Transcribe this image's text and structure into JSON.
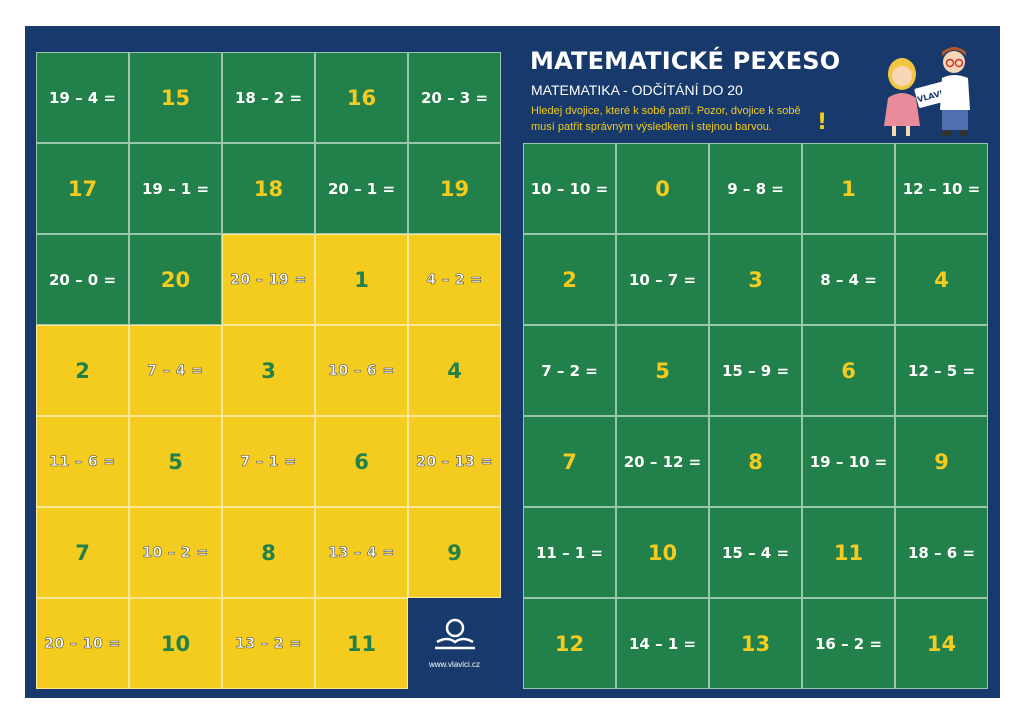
{
  "header": {
    "title": "MATEMATICKÉ PEXESO",
    "subtitle": "MATEMATIKA - ODČÍTÁNÍ DO 20",
    "instructions": "Hledej dvojice, které k sobě patří. Pozor, dvojice k sobě musí patřit správným výsledkem i stejnou barvou.",
    "exclaim": "!"
  },
  "illustration": {
    "name": "kids-illustration",
    "sign_text": "VLAVICI"
  },
  "logo": {
    "url_text": "www.vlavici.cz",
    "icon": "book-reader-icon"
  },
  "colors": {
    "background": "#17396b",
    "green": "#22804a",
    "yellow": "#f4cb1f",
    "white": "#ffffff"
  },
  "left_grid": [
    [
      {
        "t": "19 – 4 =",
        "c": "green",
        "k": "expr"
      },
      {
        "t": "15",
        "c": "green",
        "k": "num"
      },
      {
        "t": "18 – 2 =",
        "c": "green",
        "k": "expr"
      },
      {
        "t": "16",
        "c": "green",
        "k": "num"
      },
      {
        "t": "20 – 3 =",
        "c": "green",
        "k": "expr"
      }
    ],
    [
      {
        "t": "17",
        "c": "green",
        "k": "num"
      },
      {
        "t": "19 – 1 =",
        "c": "green",
        "k": "expr"
      },
      {
        "t": "18",
        "c": "green",
        "k": "num"
      },
      {
        "t": "20 – 1 =",
        "c": "green",
        "k": "expr"
      },
      {
        "t": "19",
        "c": "green",
        "k": "num"
      }
    ],
    [
      {
        "t": "20 – 0 =",
        "c": "green",
        "k": "expr"
      },
      {
        "t": "20",
        "c": "green",
        "k": "num"
      },
      {
        "t": "20 – 19 =",
        "c": "yellow",
        "k": "expr"
      },
      {
        "t": "1",
        "c": "yellow",
        "k": "num"
      },
      {
        "t": "4 – 2 =",
        "c": "yellow",
        "k": "expr"
      }
    ],
    [
      {
        "t": "2",
        "c": "yellow",
        "k": "num"
      },
      {
        "t": "7 – 4 =",
        "c": "yellow",
        "k": "expr"
      },
      {
        "t": "3",
        "c": "yellow",
        "k": "num"
      },
      {
        "t": "10 – 6 =",
        "c": "yellow",
        "k": "expr"
      },
      {
        "t": "4",
        "c": "yellow",
        "k": "num"
      }
    ],
    [
      {
        "t": "11 – 6 =",
        "c": "yellow",
        "k": "expr"
      },
      {
        "t": "5",
        "c": "yellow",
        "k": "num"
      },
      {
        "t": "7 – 1 =",
        "c": "yellow",
        "k": "expr"
      },
      {
        "t": "6",
        "c": "yellow",
        "k": "num"
      },
      {
        "t": "20 – 13 =",
        "c": "yellow",
        "k": "expr"
      }
    ],
    [
      {
        "t": "7",
        "c": "yellow",
        "k": "num"
      },
      {
        "t": "10 – 2 =",
        "c": "yellow",
        "k": "expr"
      },
      {
        "t": "8",
        "c": "yellow",
        "k": "num"
      },
      {
        "t": "13 – 4 =",
        "c": "yellow",
        "k": "expr"
      },
      {
        "t": "9",
        "c": "yellow",
        "k": "num"
      }
    ],
    [
      {
        "t": "20 – 10 =",
        "c": "yellow",
        "k": "expr"
      },
      {
        "t": "10",
        "c": "yellow",
        "k": "num"
      },
      {
        "t": "13 – 2 =",
        "c": "yellow",
        "k": "expr"
      },
      {
        "t": "11",
        "c": "yellow",
        "k": "num"
      },
      {
        "t": "",
        "c": "logo",
        "k": "logo"
      }
    ]
  ],
  "right_grid": [
    [
      {
        "t": "10 – 10 =",
        "c": "green",
        "k": "expr"
      },
      {
        "t": "0",
        "c": "green",
        "k": "num"
      },
      {
        "t": "9 – 8 =",
        "c": "green",
        "k": "expr"
      },
      {
        "t": "1",
        "c": "green",
        "k": "num"
      },
      {
        "t": "12 – 10 =",
        "c": "green",
        "k": "expr"
      }
    ],
    [
      {
        "t": "2",
        "c": "green",
        "k": "num"
      },
      {
        "t": "10 – 7 =",
        "c": "green",
        "k": "expr"
      },
      {
        "t": "3",
        "c": "green",
        "k": "num"
      },
      {
        "t": "8 – 4 =",
        "c": "green",
        "k": "expr"
      },
      {
        "t": "4",
        "c": "green",
        "k": "num"
      }
    ],
    [
      {
        "t": "7 – 2 =",
        "c": "green",
        "k": "expr"
      },
      {
        "t": "5",
        "c": "green",
        "k": "num"
      },
      {
        "t": "15 – 9 =",
        "c": "green",
        "k": "expr"
      },
      {
        "t": "6",
        "c": "green",
        "k": "num"
      },
      {
        "t": "12 – 5 =",
        "c": "green",
        "k": "expr"
      }
    ],
    [
      {
        "t": "7",
        "c": "green",
        "k": "num"
      },
      {
        "t": "20 – 12 =",
        "c": "green",
        "k": "expr"
      },
      {
        "t": "8",
        "c": "green",
        "k": "num"
      },
      {
        "t": "19 – 10 =",
        "c": "green",
        "k": "expr"
      },
      {
        "t": "9",
        "c": "green",
        "k": "num"
      }
    ],
    [
      {
        "t": "11 – 1 =",
        "c": "green",
        "k": "expr"
      },
      {
        "t": "10",
        "c": "green",
        "k": "num"
      },
      {
        "t": "15 – 4 =",
        "c": "green",
        "k": "expr"
      },
      {
        "t": "11",
        "c": "green",
        "k": "num"
      },
      {
        "t": "18 – 6 =",
        "c": "green",
        "k": "expr"
      }
    ],
    [
      {
        "t": "12",
        "c": "green",
        "k": "num"
      },
      {
        "t": "14 – 1 =",
        "c": "green",
        "k": "expr"
      },
      {
        "t": "13",
        "c": "green",
        "k": "num"
      },
      {
        "t": "16 – 2 =",
        "c": "green",
        "k": "expr"
      },
      {
        "t": "14",
        "c": "green",
        "k": "num"
      }
    ]
  ]
}
